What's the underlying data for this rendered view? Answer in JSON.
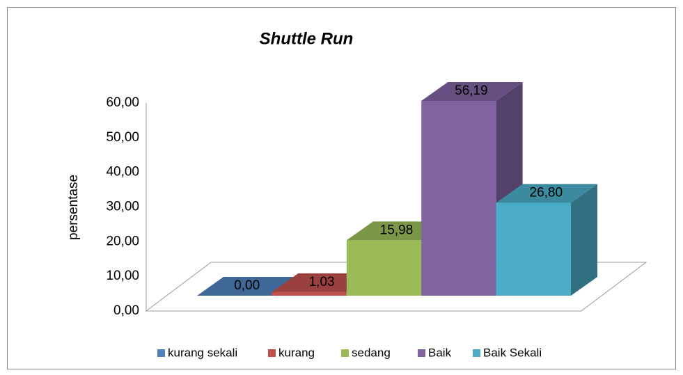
{
  "chart_data": {
    "type": "bar3d",
    "title": "Shuttle Run",
    "y_label": "persentase",
    "categories": [
      "kurang sekali",
      "kurang",
      "sedang",
      "Baik",
      "Baik Sekali"
    ],
    "values": [
      0,
      1.03,
      15.98,
      56.19,
      26.8
    ],
    "value_labels": [
      "0,00",
      "1,03",
      "15,98",
      "56,19",
      "26,80"
    ],
    "colors": [
      "#4f81bd",
      "#c0504d",
      "#9bbb59",
      "#8064a2",
      "#4bacc6"
    ],
    "ylim": [
      0,
      60
    ],
    "yticks": [
      {
        "value": 0,
        "label": "0,00"
      },
      {
        "value": 10,
        "label": "10,00"
      },
      {
        "value": 20,
        "label": "20,00"
      },
      {
        "value": 30,
        "label": "30,00"
      },
      {
        "value": 40,
        "label": "40,00"
      },
      {
        "value": 50,
        "label": "50,00"
      },
      {
        "value": 60,
        "label": "60,00"
      }
    ],
    "legend": "bottom"
  }
}
